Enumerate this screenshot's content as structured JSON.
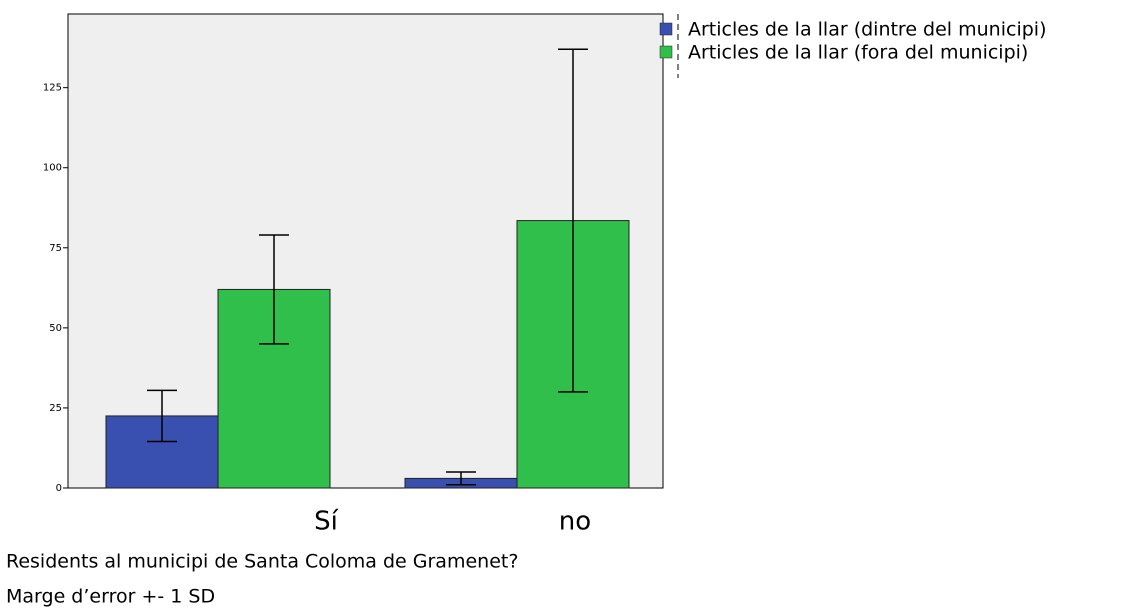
{
  "chart_data": {
    "type": "bar",
    "categories": [
      "Sí",
      "no"
    ],
    "series": [
      {
        "name": "Articles de la llar (dintre del municipi)",
        "color": "#3a50b0",
        "values": [
          22.5,
          3
        ],
        "errors": [
          8,
          2
        ]
      },
      {
        "name": "Articles de la llar (fora del municipi)",
        "color": "#2fbf4a",
        "values": [
          62,
          83.5
        ],
        "errors": [
          17,
          53.5
        ]
      }
    ],
    "ylim": [
      0,
      148
    ],
    "yticks": [
      0,
      25,
      50,
      75,
      100,
      125
    ],
    "x_label": "Residents al municipi de Santa Coloma de Gramenet?",
    "annotation": "Marge  d’error +- 1 SD",
    "legend": "right"
  }
}
